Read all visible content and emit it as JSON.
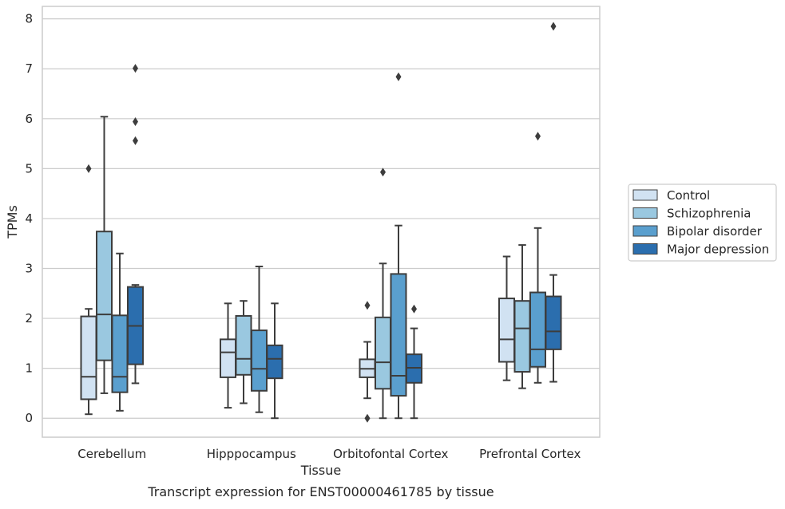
{
  "chart_data": {
    "type": "box",
    "caption": "Transcript expression for ENST00000461785 by tissue",
    "xlabel": "Tissue",
    "ylabel": "TPMs",
    "ylim": [
      -0.38,
      8.25
    ],
    "yticks": [
      0,
      1,
      2,
      3,
      4,
      5,
      6,
      7,
      8
    ],
    "grid": "horizontal",
    "legend_position": "right",
    "categories": [
      "Cerebellum",
      "Hipppocampus",
      "Orbitofontal Cortex",
      "Prefrontal Cortex"
    ],
    "series": [
      {
        "name": "Control",
        "color": "#d1e2f2",
        "boxes": [
          {
            "whislo": 0.08,
            "q1": 0.38,
            "med": 0.83,
            "q3": 2.04,
            "whishi": 2.19,
            "fliers": [
              5.0
            ]
          },
          {
            "whislo": 0.21,
            "q1": 0.82,
            "med": 1.32,
            "q3": 1.58,
            "whishi": 2.3,
            "fliers": []
          },
          {
            "whislo": 0.4,
            "q1": 0.82,
            "med": 0.99,
            "q3": 1.18,
            "whishi": 1.53,
            "fliers": [
              0.0,
              2.26
            ]
          },
          {
            "whislo": 0.76,
            "q1": 1.13,
            "med": 1.58,
            "q3": 2.4,
            "whishi": 3.24,
            "fliers": []
          }
        ]
      },
      {
        "name": "Schizophrenia",
        "color": "#9ac8e0",
        "boxes": [
          {
            "whislo": 0.5,
            "q1": 1.16,
            "med": 2.08,
            "q3": 3.74,
            "whishi": 6.04,
            "fliers": []
          },
          {
            "whislo": 0.3,
            "q1": 0.87,
            "med": 1.19,
            "q3": 2.05,
            "whishi": 2.35,
            "fliers": []
          },
          {
            "whislo": 0.0,
            "q1": 0.59,
            "med": 1.12,
            "q3": 2.02,
            "whishi": 3.1,
            "fliers": [
              4.93
            ]
          },
          {
            "whislo": 0.6,
            "q1": 0.93,
            "med": 1.8,
            "q3": 2.35,
            "whishi": 3.47,
            "fliers": []
          }
        ]
      },
      {
        "name": "Bipolar disorder",
        "color": "#5a9fce",
        "boxes": [
          {
            "whislo": 0.15,
            "q1": 0.52,
            "med": 0.83,
            "q3": 2.06,
            "whishi": 3.3,
            "fliers": []
          },
          {
            "whislo": 0.12,
            "q1": 0.55,
            "med": 0.99,
            "q3": 1.76,
            "whishi": 3.04,
            "fliers": []
          },
          {
            "whislo": 0.0,
            "q1": 0.45,
            "med": 0.85,
            "q3": 2.89,
            "whishi": 3.86,
            "fliers": [
              6.84
            ]
          },
          {
            "whislo": 0.71,
            "q1": 1.03,
            "med": 1.38,
            "q3": 2.52,
            "whishi": 3.81,
            "fliers": [
              5.65
            ]
          }
        ]
      },
      {
        "name": "Major depression",
        "color": "#2b6eae",
        "boxes": [
          {
            "whislo": 0.7,
            "q1": 1.08,
            "med": 1.85,
            "q3": 2.63,
            "whishi": 2.67,
            "fliers": [
              5.56,
              5.94,
              7.01
            ]
          },
          {
            "whislo": 0.0,
            "q1": 0.8,
            "med": 1.19,
            "q3": 1.46,
            "whishi": 2.3,
            "fliers": []
          },
          {
            "whislo": 0.0,
            "q1": 0.71,
            "med": 1.01,
            "q3": 1.28,
            "whishi": 1.8,
            "fliers": [
              2.19
            ]
          },
          {
            "whislo": 0.73,
            "q1": 1.38,
            "med": 1.74,
            "q3": 2.44,
            "whishi": 2.87,
            "fliers": [
              7.85
            ]
          }
        ]
      }
    ]
  },
  "colors": {
    "grid": "#cccccc",
    "line": "#3d3d3d",
    "flier": "#3d3d3d",
    "legend_border": "#cccccc"
  }
}
